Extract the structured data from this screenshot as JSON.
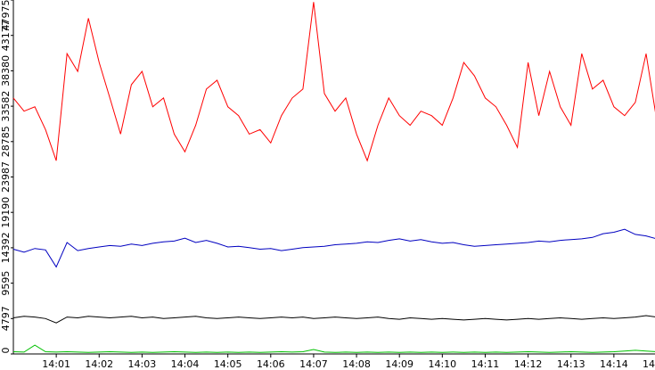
{
  "chart_data": {
    "type": "line",
    "x": [
      0,
      0.25,
      0.5,
      0.75,
      1,
      1.25,
      1.5,
      1.75,
      2,
      2.25,
      2.5,
      2.75,
      3,
      3.25,
      3.5,
      3.75,
      4,
      4.25,
      4.5,
      4.75,
      5,
      5.25,
      5.5,
      5.75,
      6,
      6.25,
      6.5,
      6.75,
      7,
      7.25,
      7.5,
      7.75,
      8,
      8.25,
      8.5,
      8.75,
      9,
      9.25,
      9.5,
      9.75,
      10,
      10.25,
      10.5,
      10.75,
      11,
      11.25,
      11.5,
      11.75,
      12,
      12.25,
      12.5,
      12.75,
      13,
      13.25,
      13.5,
      13.75,
      14,
      14.25,
      14.5,
      14.75,
      15
    ],
    "xlim": [
      0,
      15
    ],
    "xticks": [
      {
        "value": 1,
        "label": "14:01"
      },
      {
        "value": 2,
        "label": "14:02"
      },
      {
        "value": 3,
        "label": "14:03"
      },
      {
        "value": 4,
        "label": "14:04"
      },
      {
        "value": 5,
        "label": "14:05"
      },
      {
        "value": 6,
        "label": "14:06"
      },
      {
        "value": 7,
        "label": "14:07"
      },
      {
        "value": 8,
        "label": "14:08"
      },
      {
        "value": 9,
        "label": "14:09"
      },
      {
        "value": 10,
        "label": "14:10"
      },
      {
        "value": 11,
        "label": "14:11"
      },
      {
        "value": 12,
        "label": "14:12"
      },
      {
        "value": 13,
        "label": "14:13"
      },
      {
        "value": 14,
        "label": "14:14"
      },
      {
        "value": 15,
        "label": "14"
      }
    ],
    "ylim": [
      0,
      47975
    ],
    "yticks": [
      0,
      4797,
      9595,
      14392,
      19190,
      23987,
      28785,
      33582,
      38380,
      43177,
      47975
    ],
    "series": [
      {
        "color": "#ff0000",
        "values": [
          34700,
          32900,
          33500,
          30400,
          26200,
          40700,
          38300,
          45500,
          39500,
          34700,
          29800,
          36500,
          38300,
          33500,
          34700,
          29800,
          27400,
          31000,
          35900,
          37100,
          33500,
          32300,
          29800,
          30400,
          28600,
          32300,
          34700,
          35900,
          47700,
          35300,
          32900,
          34700,
          29800,
          26200,
          31000,
          34700,
          32300,
          31000,
          32900,
          32300,
          31000,
          34700,
          39500,
          37700,
          34700,
          33500,
          31000,
          28000,
          39500,
          32300,
          38300,
          33500,
          31000,
          40700,
          35900,
          37100,
          33500,
          32300,
          34100,
          40700,
          31600
        ]
      },
      {
        "color": "#0000c0",
        "values": [
          14200,
          13800,
          14300,
          14100,
          11800,
          15100,
          14000,
          14300,
          14500,
          14700,
          14600,
          14900,
          14700,
          15000,
          15200,
          15300,
          15700,
          15100,
          15400,
          15000,
          14500,
          14600,
          14400,
          14200,
          14300,
          14000,
          14200,
          14400,
          14500,
          14600,
          14800,
          14900,
          15000,
          15200,
          15100,
          15400,
          15600,
          15300,
          15500,
          15200,
          15000,
          15100,
          14800,
          14600,
          14700,
          14800,
          14900,
          15000,
          15100,
          15300,
          15200,
          15400,
          15500,
          15600,
          15800,
          16300,
          16500,
          16900,
          16200,
          16000,
          15600
        ]
      },
      {
        "color": "#000000",
        "values": [
          4900,
          5100,
          5000,
          4800,
          4200,
          5000,
          4900,
          5100,
          5000,
          4900,
          5000,
          5100,
          4900,
          5000,
          4800,
          4900,
          5000,
          5100,
          4900,
          4800,
          4900,
          5000,
          4900,
          4800,
          4900,
          5000,
          4900,
          5000,
          4800,
          4900,
          5000,
          4900,
          4800,
          4900,
          5000,
          4800,
          4700,
          4900,
          4800,
          4700,
          4800,
          4700,
          4600,
          4700,
          4800,
          4700,
          4600,
          4700,
          4800,
          4700,
          4800,
          4900,
          4800,
          4700,
          4800,
          4900,
          4800,
          4900,
          5000,
          5200,
          5000
        ]
      },
      {
        "color": "#00c000",
        "values": [
          300,
          250,
          1200,
          300,
          250,
          300,
          250,
          200,
          250,
          300,
          250,
          200,
          250,
          200,
          250,
          300,
          250,
          200,
          250,
          200,
          250,
          200,
          250,
          200,
          250,
          300,
          250,
          300,
          600,
          250,
          200,
          250,
          200,
          250,
          200,
          250,
          200,
          250,
          200,
          250,
          200,
          250,
          200,
          250,
          200,
          250,
          200,
          250,
          300,
          250,
          200,
          250,
          300,
          250,
          200,
          250,
          300,
          400,
          500,
          400,
          300
        ]
      }
    ]
  }
}
